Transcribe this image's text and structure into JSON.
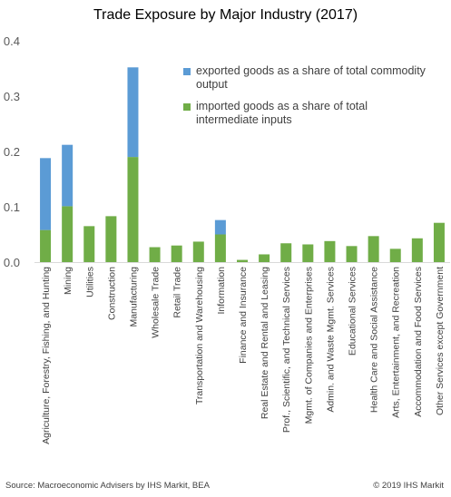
{
  "chart_data": {
    "type": "bar",
    "stacked": true,
    "title": "Trade Exposure by Major Industry (2017)",
    "xlabel": "",
    "ylabel": "",
    "ylim": [
      0,
      0.4
    ],
    "yticks": [
      "0.0",
      "0.1",
      "0.2",
      "0.3",
      "0.4"
    ],
    "grid": false,
    "legend_position": "top-right",
    "categories": [
      "Agriculture, Forestry, Fishing, and Hunting",
      "Mining",
      "Utilities",
      "Construction",
      "Manufacturing",
      "Wholesale Trade",
      "Retail Trade",
      "Transportation and Warehousing",
      "Information",
      "Finance and Insurance",
      "Real Estate and Rental and Leasing",
      "Prof., Scientific, and Technical Services",
      "Mgmt. of Companies and Enterprises",
      "Admin. and Waste Mgmt. Services",
      "Educational Services",
      "Health Care and Social Assistance",
      "Arts, Entertainment, and Recreation",
      "Accommodation and Food Services",
      "Other Services except Government"
    ],
    "series": [
      {
        "name": "imported goods as a share of total intermediate inputs",
        "color": "#70ad47",
        "values": [
          0.058,
          0.101,
          0.065,
          0.083,
          0.19,
          0.027,
          0.03,
          0.037,
          0.05,
          0.004,
          0.014,
          0.034,
          0.032,
          0.038,
          0.029,
          0.047,
          0.024,
          0.043,
          0.071
        ]
      },
      {
        "name": "exported goods as a share of total commodity output",
        "color": "#5b9bd5",
        "values": [
          0.13,
          0.111,
          0,
          0,
          0.162,
          0,
          0,
          0,
          0.026,
          0,
          0,
          0,
          0,
          0,
          0,
          0,
          0,
          0,
          0
        ]
      }
    ]
  },
  "legend": {
    "exported": "exported goods as a share of total commodity output",
    "imported": "imported goods as a share of total intermediate inputs"
  },
  "footer": {
    "source": "Source: Macroeconomic Advisers by IHS Markit, BEA",
    "copyright": "© 2019 IHS Markit"
  }
}
